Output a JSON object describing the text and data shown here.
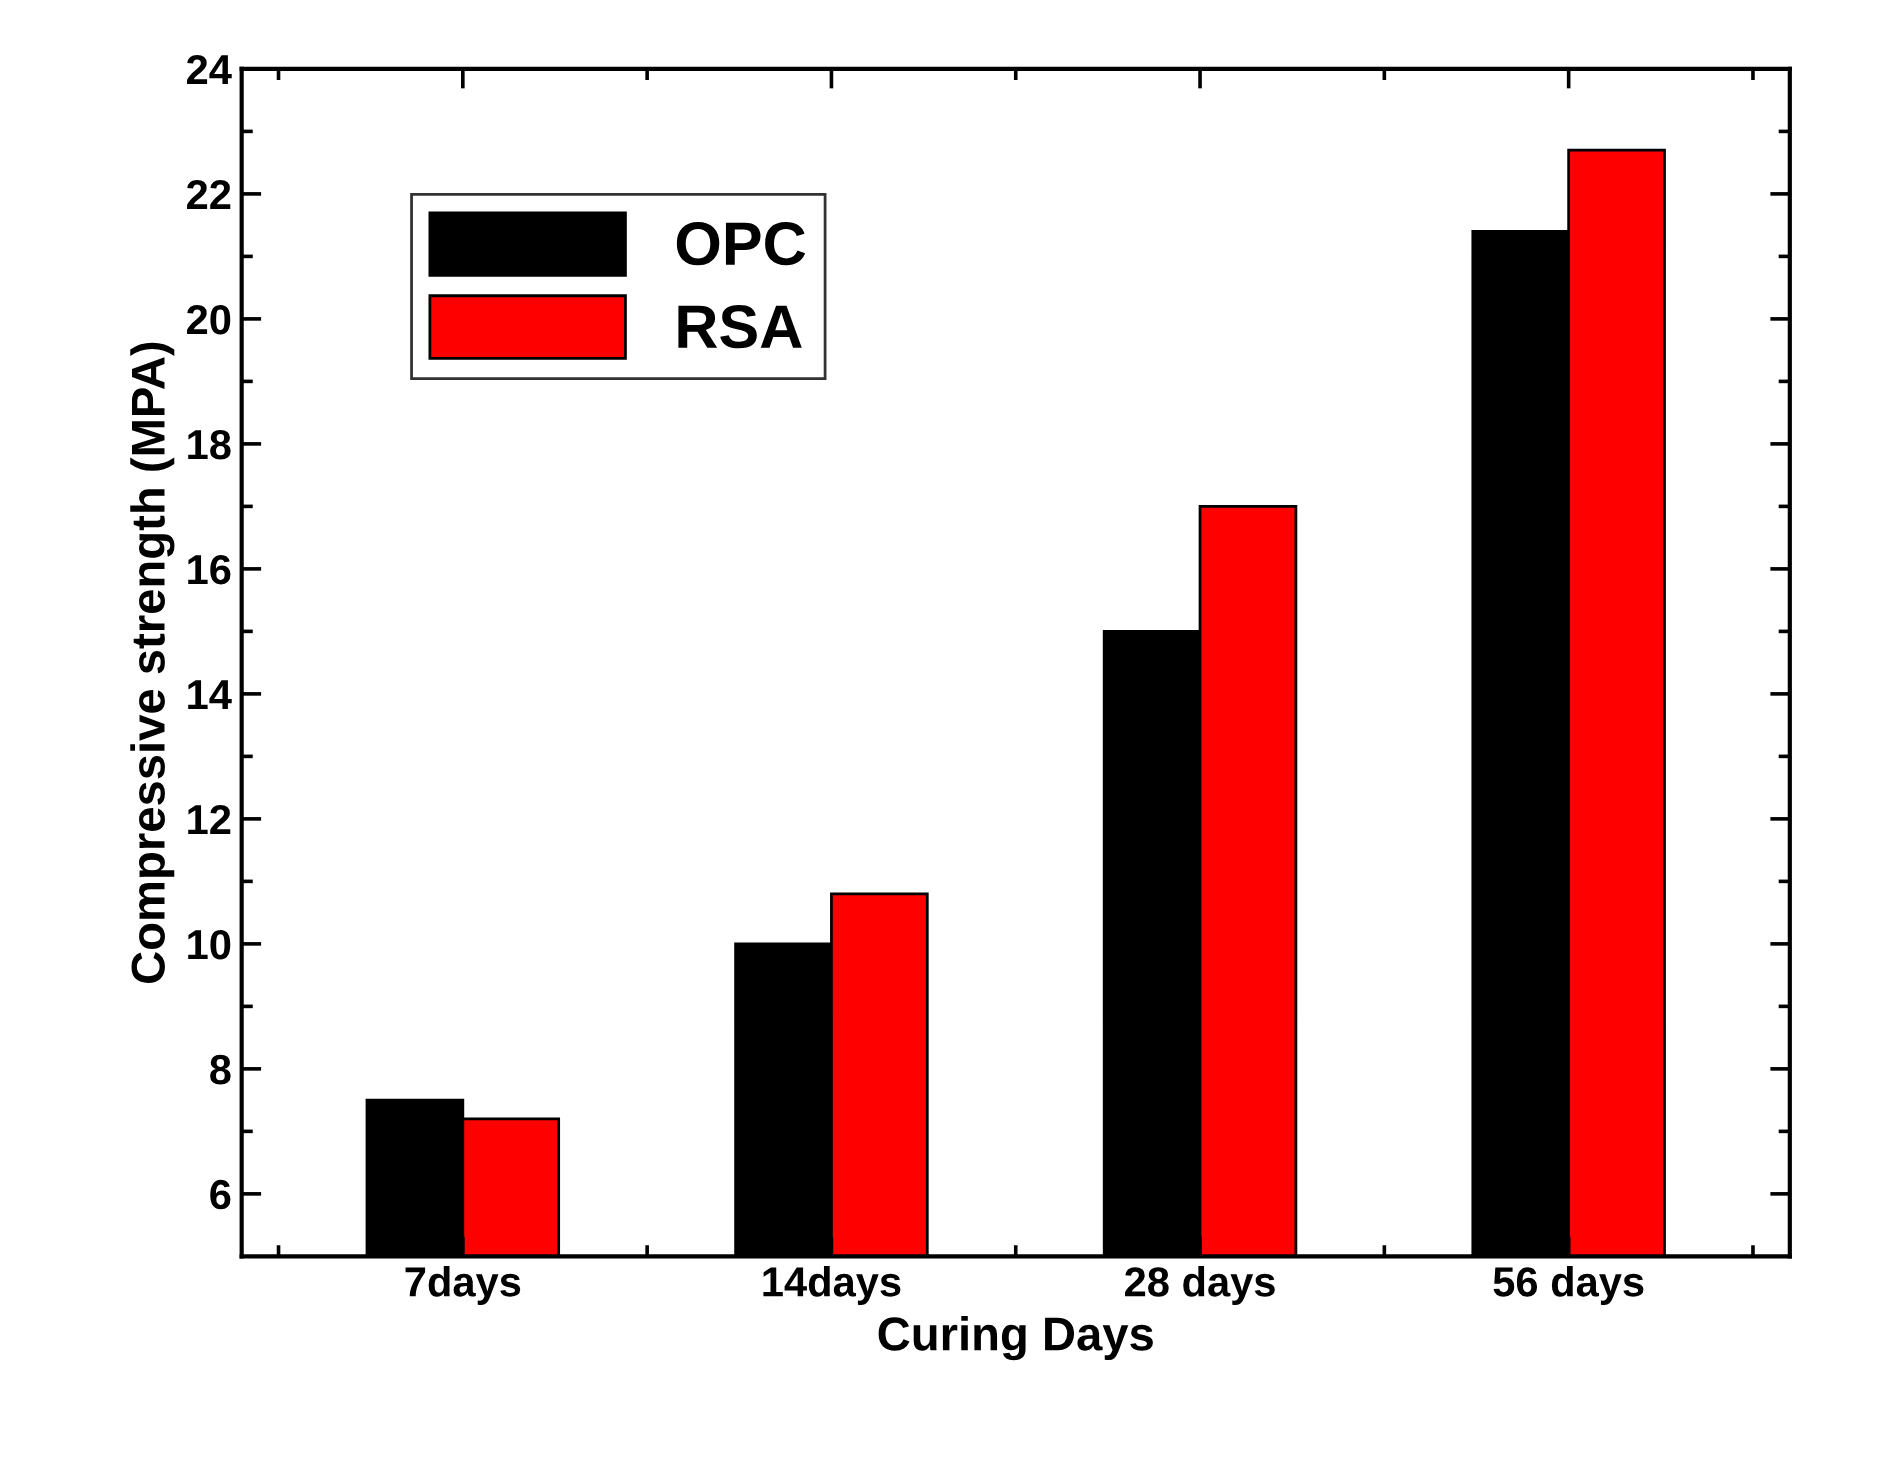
{
  "chart_data": {
    "type": "bar",
    "xlabel": "Curing Days",
    "ylabel": "Compressive strength (MPA)",
    "categories": [
      "7days",
      "14days",
      "28 days",
      "56 days"
    ],
    "series": [
      {
        "name": "OPC",
        "color": "#000000",
        "values": [
          7.5,
          10.0,
          15.0,
          21.4
        ]
      },
      {
        "name": "RSA",
        "color": "#ff0000",
        "values": [
          7.2,
          10.8,
          17.0,
          22.7
        ]
      }
    ],
    "ylim": [
      5,
      24
    ],
    "yticks": [
      6,
      8,
      10,
      12,
      14,
      16,
      18,
      20,
      22,
      24
    ],
    "grid": false,
    "legend": "top left"
  }
}
